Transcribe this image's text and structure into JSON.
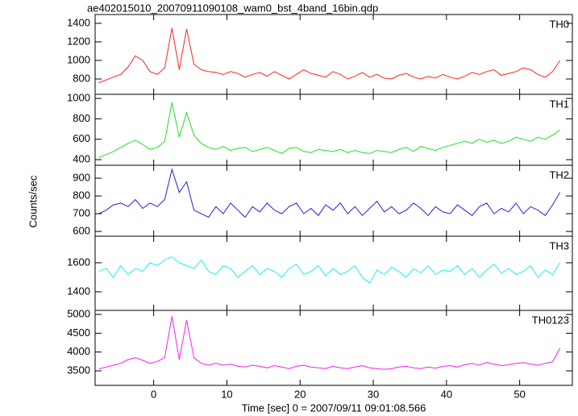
{
  "chart_data": {
    "type": "line",
    "title": "ae402015010_20070911090108_wam0_bst_4band_16bin.qdp",
    "xlabel": "Time [sec] 0 = 2007/09/11 09:01:08.566",
    "ylabel": "Counts/sec",
    "xlim": [
      -8,
      57.2
    ],
    "xticks": [
      0,
      10,
      20,
      30,
      40,
      50
    ],
    "x": [
      -7.5,
      -6.5,
      -5.5,
      -4.5,
      -3.5,
      -2.5,
      -1.5,
      -0.5,
      0.5,
      1.5,
      2.5,
      3.5,
      4.5,
      5.5,
      6.5,
      7.5,
      8.5,
      9.5,
      10.5,
      11.5,
      12.5,
      13.5,
      14.5,
      15.5,
      16.5,
      17.5,
      18.5,
      19.5,
      20.5,
      21.5,
      22.5,
      23.5,
      24.5,
      25.5,
      26.5,
      27.5,
      28.5,
      29.5,
      30.5,
      31.5,
      32.5,
      33.5,
      34.5,
      35.5,
      36.5,
      37.5,
      38.5,
      39.5,
      40.5,
      41.5,
      42.5,
      43.5,
      44.5,
      45.5,
      46.5,
      47.5,
      48.5,
      49.5,
      50.5,
      51.5,
      52.5,
      53.5,
      54.5,
      55.5
    ],
    "series": [
      {
        "name": "TH0",
        "color": "#ff2020",
        "ylim": [
          635,
          1495
        ],
        "yticks": [
          800,
          1000,
          1200,
          1400
        ],
        "values": [
          760,
          790,
          820,
          850,
          930,
          1050,
          1000,
          880,
          850,
          920,
          1350,
          900,
          1340,
          960,
          900,
          880,
          870,
          850,
          880,
          860,
          820,
          850,
          870,
          830,
          880,
          840,
          800,
          850,
          900,
          860,
          840,
          820,
          880,
          850,
          800,
          830,
          870,
          820,
          850,
          810,
          800,
          840,
          860,
          820,
          800,
          830,
          810,
          850,
          820,
          800,
          830,
          870,
          850,
          880,
          900,
          840,
          860,
          880,
          920,
          900,
          850,
          820,
          880,
          1000
        ]
      },
      {
        "name": "TH1",
        "color": "#20e020",
        "ylim": [
          345,
          1040
        ],
        "yticks": [
          400,
          600,
          800,
          1000
        ],
        "values": [
          420,
          450,
          480,
          520,
          560,
          590,
          550,
          500,
          520,
          580,
          960,
          620,
          860,
          640,
          560,
          520,
          500,
          530,
          490,
          510,
          520,
          480,
          500,
          520,
          490,
          460,
          510,
          520,
          480,
          470,
          500,
          490,
          480,
          500,
          470,
          490,
          470,
          460,
          490,
          480,
          470,
          500,
          520,
          480,
          530,
          510,
          490,
          520,
          540,
          560,
          580,
          560,
          600,
          570,
          590,
          560,
          580,
          620,
          600,
          580,
          620,
          600,
          640,
          690
        ]
      },
      {
        "name": "TH2",
        "color": "#2020e0",
        "ylim": [
          573,
          973
        ],
        "yticks": [
          600,
          700,
          800,
          900
        ],
        "values": [
          700,
          720,
          750,
          760,
          740,
          780,
          730,
          760,
          740,
          780,
          950,
          820,
          880,
          720,
          700,
          680,
          740,
          700,
          760,
          720,
          680,
          740,
          710,
          760,
          720,
          700,
          740,
          760,
          700,
          730,
          690,
          750,
          720,
          760,
          700,
          740,
          690,
          730,
          770,
          710,
          740,
          700,
          720,
          760,
          730,
          690,
          740,
          710,
          700,
          750,
          720,
          690,
          740,
          760,
          700,
          730,
          710,
          760,
          700,
          740,
          720,
          690,
          750,
          820
        ]
      },
      {
        "name": "TH3",
        "color": "#20f0f0",
        "ylim": [
          1272,
          1783
        ],
        "yticks": [
          1400,
          1600
        ],
        "values": [
          1540,
          1560,
          1500,
          1580,
          1520,
          1560,
          1540,
          1600,
          1580,
          1620,
          1640,
          1600,
          1580,
          1560,
          1620,
          1540,
          1520,
          1580,
          1560,
          1500,
          1540,
          1580,
          1520,
          1560,
          1540,
          1500,
          1560,
          1590,
          1520,
          1540,
          1580,
          1510,
          1560,
          1520,
          1540,
          1580,
          1500,
          1460,
          1550,
          1520,
          1570,
          1540,
          1500,
          1560,
          1530,
          1580,
          1520,
          1550,
          1540,
          1580,
          1520,
          1560,
          1500,
          1550,
          1590,
          1530,
          1560,
          1520,
          1540,
          1580,
          1500,
          1550,
          1520,
          1600
        ]
      },
      {
        "name": "TH0123",
        "color": "#f020f0",
        "ylim": [
          3114,
          5107
        ],
        "yticks": [
          3500,
          4000,
          4500,
          5000
        ],
        "values": [
          3550,
          3600,
          3650,
          3700,
          3800,
          3850,
          3780,
          3700,
          3750,
          3850,
          4950,
          3800,
          4850,
          3850,
          3700,
          3650,
          3700,
          3650,
          3680,
          3620,
          3600,
          3650,
          3620,
          3580,
          3640,
          3600,
          3560,
          3620,
          3650,
          3600,
          3580,
          3560,
          3620,
          3580,
          3560,
          3600,
          3640,
          3580,
          3560,
          3540,
          3560,
          3600,
          3620,
          3580,
          3560,
          3600,
          3570,
          3620,
          3640,
          3600,
          3660,
          3700,
          3650,
          3720,
          3680,
          3640,
          3660,
          3700,
          3720,
          3680,
          3650,
          3700,
          3740,
          4100
        ]
      }
    ]
  }
}
